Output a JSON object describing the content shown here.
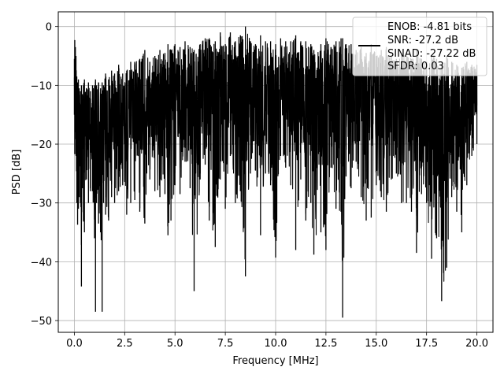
{
  "chart_data": {
    "type": "line",
    "xlabel": "Frequency [MHz]",
    "ylabel": "PSD [dB]",
    "xlim": [
      -0.8,
      20.8
    ],
    "ylim": [
      -52,
      2.5
    ],
    "xticks": [
      0.0,
      2.5,
      5.0,
      7.5,
      10.0,
      12.5,
      15.0,
      17.5,
      20.0
    ],
    "xtick_labels": [
      "0.0",
      "2.5",
      "5.0",
      "7.5",
      "10.0",
      "12.5",
      "15.0",
      "17.5",
      "20.0"
    ],
    "yticks": [
      0,
      -10,
      -20,
      -30,
      -40,
      -50
    ],
    "ytick_labels": [
      "0",
      "−10",
      "−20",
      "−30",
      "−40",
      "−50"
    ],
    "grid": true,
    "legend_position": "top-right",
    "legend_entries": [
      "ENOB: -4.81 bits",
      "SNR: -27.2 dB",
      "SINAD: -27.22 dB",
      "SFDR: 0.03"
    ],
    "series": [
      {
        "color": "#000000",
        "x": [
          0.0,
          0.02,
          0.05,
          0.08,
          0.12,
          0.16,
          0.2,
          0.24,
          0.3,
          0.35,
          0.4,
          0.45,
          0.5,
          0.6,
          0.7,
          0.8,
          0.9,
          1.0,
          1.05,
          1.1,
          1.2,
          1.3,
          1.38,
          1.45,
          1.55,
          1.7,
          1.85,
          2.0,
          2.2,
          2.4,
          2.6,
          2.8,
          3.0,
          3.25,
          3.5,
          3.75,
          4.0,
          4.25,
          4.5,
          4.65,
          4.8,
          5.0,
          5.25,
          5.5,
          5.75,
          5.95,
          6.25,
          6.5,
          6.7,
          7.0,
          7.25,
          7.5,
          7.75,
          8.0,
          8.25,
          8.5,
          8.75,
          9.0,
          9.25,
          9.5,
          9.75,
          10.0,
          10.25,
          10.5,
          10.75,
          11.0,
          11.25,
          11.5,
          11.75,
          11.9,
          12.25,
          12.5,
          12.75,
          13.0,
          13.25,
          13.33,
          13.5,
          13.75,
          14.0,
          14.25,
          14.5,
          14.75,
          15.0,
          15.25,
          15.5,
          15.75,
          16.0,
          16.25,
          16.5,
          16.75,
          17.0,
          17.25,
          17.5,
          17.75,
          18.0,
          18.25,
          18.5,
          18.75,
          19.0,
          19.25,
          19.5,
          19.75,
          20.0
        ],
        "upper": [
          -5.5,
          -2.3,
          -3.5,
          -5.0,
          -8.5,
          -9.5,
          -9.0,
          -10.5,
          -11.0,
          -10.0,
          -11.5,
          -10.0,
          -9.0,
          -10.5,
          -9.5,
          -11.0,
          -10.0,
          -10.0,
          -9.0,
          -10.0,
          -9.5,
          -10.5,
          -9.5,
          -10.0,
          -8.0,
          -9.0,
          -7.5,
          -8.0,
          -6.5,
          -8.0,
          -7.5,
          -6.0,
          -6.0,
          -5.5,
          -4.0,
          -6.0,
          -5.0,
          -4.0,
          -4.5,
          -3.0,
          -4.0,
          -3.0,
          -3.5,
          -2.5,
          -3.5,
          -4.0,
          -3.0,
          -2.0,
          -2.0,
          -2.5,
          -1.0,
          -3.0,
          -1.0,
          -2.5,
          -1.5,
          0.0,
          -2.5,
          -3.0,
          -1.5,
          -2.5,
          -2.5,
          -3.0,
          -2.0,
          -2.5,
          -2.5,
          -1.5,
          -2.5,
          -2.5,
          -3.0,
          -4.0,
          -3.0,
          -2.0,
          -3.5,
          -2.5,
          -2.0,
          -2.0,
          -3.0,
          -3.0,
          -4.0,
          -3.5,
          -4.5,
          -3.0,
          -5.0,
          -4.0,
          -3.5,
          -5.0,
          -5.5,
          -4.5,
          -5.0,
          -5.5,
          -4.0,
          -5.5,
          -6.0,
          -5.0,
          -5.5,
          -6.5,
          -5.0,
          -6.0,
          -6.5,
          -7.0,
          -6.0,
          -6.5,
          -6.5
        ],
        "lower": [
          -15.0,
          -21.7,
          -18.0,
          -22.0,
          -30.0,
          -33.7,
          -31.0,
          -29.0,
          -30.0,
          -44.2,
          -27.5,
          -33.0,
          -35.0,
          -26.0,
          -30.0,
          -28.0,
          -28.0,
          -36.0,
          -48.5,
          -30.0,
          -33.5,
          -35.0,
          -48.5,
          -30.0,
          -32.0,
          -33.0,
          -29.0,
          -30.0,
          -28.0,
          -27.0,
          -32.0,
          -30.0,
          -29.5,
          -31.5,
          -33.5,
          -26.0,
          -28.0,
          -29.0,
          -28.5,
          -35.5,
          -33.0,
          -27.0,
          -28.5,
          -23.0,
          -27.5,
          -45.0,
          -26.0,
          -23.5,
          -33.0,
          -37.5,
          -26.0,
          -31.0,
          -22.0,
          -30.0,
          -28.0,
          -42.5,
          -25.0,
          -24.5,
          -35.5,
          -25.0,
          -27.0,
          -39.3,
          -22.0,
          -24.0,
          -27.0,
          -38.0,
          -26.0,
          -33.0,
          -30.0,
          -38.8,
          -35.0,
          -38.0,
          -24.0,
          -31.0,
          -31.5,
          -49.5,
          -25.5,
          -27.5,
          -23.0,
          -29.0,
          -33.0,
          -32.5,
          -27.0,
          -29.0,
          -31.5,
          -26.0,
          -25.0,
          -30.0,
          -30.0,
          -31.5,
          -38.5,
          -28.5,
          -30.0,
          -39.5,
          -36.0,
          -46.7,
          -41.0,
          -29.0,
          -31.5,
          -35.0,
          -27.0,
          -22.0,
          -20.0
        ]
      }
    ]
  }
}
